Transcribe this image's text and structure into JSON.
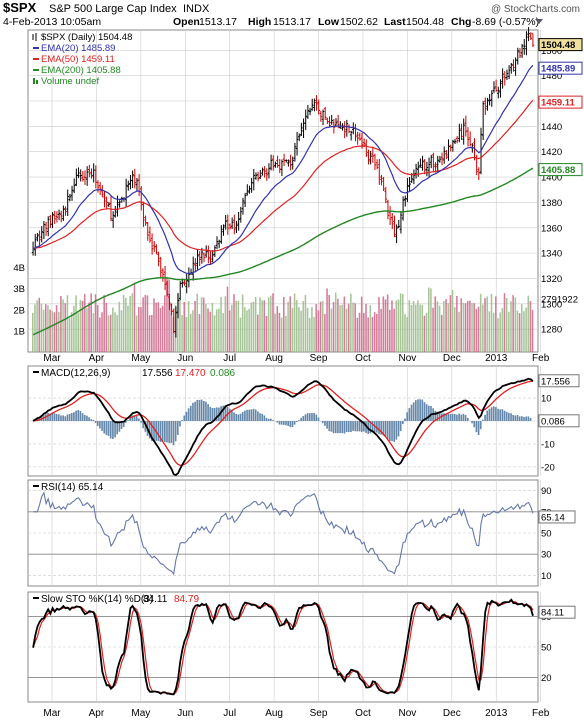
{
  "header": {
    "symbol": "$SPX",
    "name": "S&P 500 Large Cap Index",
    "exchange": "INDX",
    "date": "4-Feb-2013 10:05am",
    "open_label": "Open",
    "open": "1513.17",
    "high_label": "High",
    "high": "1513.17",
    "low_label": "Low",
    "low": "1502.62",
    "last_label": "Last",
    "last": "1504.48",
    "chg_label": "Chg",
    "chg": "-8.69 (-0.57%)",
    "watermark": "@ StockCharts.com"
  },
  "colors": {
    "price_up": "#000000",
    "price_down": "#cc0000",
    "ema20": "#3333aa",
    "ema50": "#dd2222",
    "ema200": "#228822",
    "volume_up": "#99bb88",
    "volume_down": "#cc6688",
    "macd": "#000000",
    "signal": "#dd2222",
    "histogram": "#6688aa",
    "rsi": "#6677aa",
    "sto_k": "#000000",
    "sto_d": "#dd2222",
    "grid": "#cccccc"
  },
  "chart_data": [
    {
      "type": "candlestick",
      "title": "$SPX (Daily) 1504.48",
      "legend": [
        {
          "label": "$SPX (Daily) 1504.48",
          "color": "#000000"
        },
        {
          "label": "EMA(20) 1485.89",
          "color": "#3333aa"
        },
        {
          "label": "EMA(50) 1459.11",
          "color": "#dd2222"
        },
        {
          "label": "EMA(200) 1405.88",
          "color": "#228822"
        },
        {
          "label": "Volume undef",
          "color": "#228822"
        }
      ],
      "x_labels": [
        "Mar",
        "Apr",
        "May",
        "Jun",
        "Jul",
        "Aug",
        "Sep",
        "Oct",
        "Nov",
        "Dec",
        "2013",
        "Feb"
      ],
      "y_ticks": [
        1280,
        1300,
        1320,
        1340,
        1360,
        1380,
        1400,
        1420,
        1440,
        1460,
        1480,
        1500
      ],
      "ylim": [
        1262,
        1516
      ],
      "volume_ticks": [
        "4B",
        "3B",
        "2B",
        "1B"
      ],
      "volume_ylim": [
        0,
        4.5
      ],
      "price_tags": [
        {
          "value": 1504.48,
          "label": "1504.48"
        },
        {
          "value": 1485.89,
          "label": "1485.89"
        },
        {
          "value": 1459.11,
          "label": "1459.11"
        },
        {
          "value": 1405.88,
          "label": "1405.88"
        }
      ],
      "volume_tag": "2791922",
      "anchors": [
        {
          "m": 0,
          "c": 1348
        },
        {
          "m": 0.4,
          "c": 1366
        },
        {
          "m": 0.7,
          "c": 1372
        },
        {
          "m": 0.9,
          "c": 1395
        },
        {
          "m": 1.2,
          "c": 1405
        },
        {
          "m": 1.4,
          "c": 1400
        },
        {
          "m": 1.6,
          "c": 1382
        },
        {
          "m": 1.8,
          "c": 1368
        },
        {
          "m": 2.1,
          "c": 1392
        },
        {
          "m": 2.3,
          "c": 1400
        },
        {
          "m": 2.5,
          "c": 1365
        },
        {
          "m": 2.8,
          "c": 1335
        },
        {
          "m": 3.1,
          "c": 1300
        },
        {
          "m": 3.15,
          "c": 1278
        },
        {
          "m": 3.3,
          "c": 1315
        },
        {
          "m": 3.5,
          "c": 1325
        },
        {
          "m": 3.8,
          "c": 1340
        },
        {
          "m": 4.0,
          "c": 1335
        },
        {
          "m": 4.3,
          "c": 1365
        },
        {
          "m": 4.5,
          "c": 1360
        },
        {
          "m": 4.8,
          "c": 1388
        },
        {
          "m": 5.0,
          "c": 1400
        },
        {
          "m": 5.4,
          "c": 1410
        },
        {
          "m": 5.8,
          "c": 1412
        },
        {
          "m": 6.1,
          "c": 1445
        },
        {
          "m": 6.3,
          "c": 1460
        },
        {
          "m": 6.5,
          "c": 1448
        },
        {
          "m": 6.8,
          "c": 1440
        },
        {
          "m": 7.1,
          "c": 1440
        },
        {
          "m": 7.3,
          "c": 1430
        },
        {
          "m": 7.5,
          "c": 1420
        },
        {
          "m": 7.75,
          "c": 1405
        },
        {
          "m": 7.9,
          "c": 1385
        },
        {
          "m": 8.0,
          "c": 1365
        },
        {
          "m": 8.15,
          "c": 1355
        },
        {
          "m": 8.3,
          "c": 1380
        },
        {
          "m": 8.5,
          "c": 1400
        },
        {
          "m": 8.8,
          "c": 1410
        },
        {
          "m": 9.1,
          "c": 1413
        },
        {
          "m": 9.3,
          "c": 1420
        },
        {
          "m": 9.5,
          "c": 1430
        },
        {
          "m": 9.7,
          "c": 1438
        },
        {
          "m": 9.9,
          "c": 1420
        },
        {
          "m": 10.0,
          "c": 1400
        },
        {
          "m": 10.1,
          "c": 1455
        },
        {
          "m": 10.3,
          "c": 1465
        },
        {
          "m": 10.6,
          "c": 1480
        },
        {
          "m": 10.85,
          "c": 1495
        },
        {
          "m": 11.0,
          "c": 1500
        },
        {
          "m": 11.15,
          "c": 1513
        },
        {
          "m": 11.22,
          "c": 1504
        }
      ]
    },
    {
      "type": "line",
      "title": "MACD(12,26,9) 17.556, 17.470, 0.086",
      "legend": [
        {
          "label": "MACD(12,26,9)",
          "color": "#000000"
        },
        {
          "label": "17.556",
          "color": "#000000"
        },
        {
          "label": "17.470",
          "color": "#dd2222"
        },
        {
          "label": "0.086",
          "color": "#228822"
        }
      ],
      "y_ticks": [
        10,
        0,
        -10,
        -20
      ],
      "ylim": [
        -24,
        24
      ],
      "tags": [
        {
          "value": 17.556,
          "label": "17.556"
        },
        {
          "value": 0.086,
          "label": "0.086"
        }
      ]
    },
    {
      "type": "line",
      "title": "RSI(14) 65.14",
      "legend": [
        {
          "label": "RSI(14) 65.14",
          "color": "#000000"
        }
      ],
      "y_ticks": [
        90,
        70,
        50,
        30,
        10
      ],
      "ylim": [
        0,
        100
      ],
      "ref_lines": [
        70,
        30
      ],
      "tags": [
        {
          "value": 65.14,
          "label": "65.14"
        }
      ]
    },
    {
      "type": "line",
      "title": "Slow STO %K(14) %D(3) 84.11, 84.79",
      "legend": [
        {
          "label": "Slow STO %K(14) %D(3)",
          "color": "#000000"
        },
        {
          "label": "84.11",
          "color": "#000000"
        },
        {
          "label": "84.79",
          "color": "#dd2222"
        }
      ],
      "y_ticks": [
        80,
        50,
        20
      ],
      "ylim": [
        0,
        100
      ],
      "ref_lines": [
        80,
        20
      ],
      "tags": [
        {
          "value": 84.11,
          "label": "84.11"
        }
      ]
    }
  ]
}
